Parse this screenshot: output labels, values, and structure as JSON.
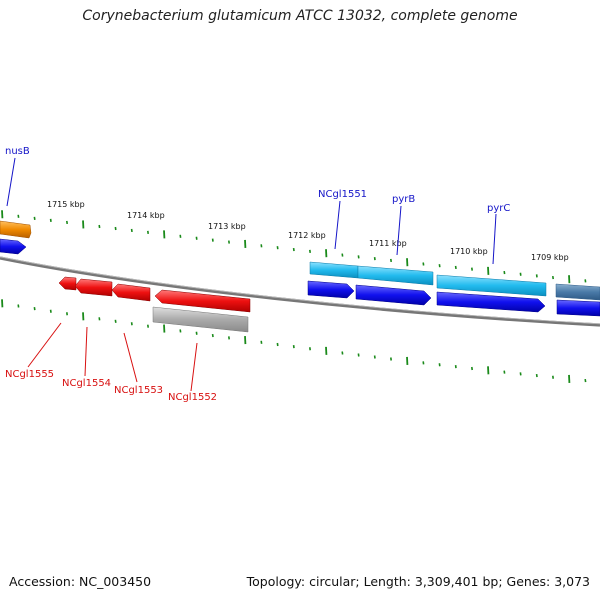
{
  "title": "Corynebacterium glutamicum ATCC 13032, complete genome",
  "footer": {
    "accession": "Accession: NC_003450",
    "summary": "Topology: circular; Length: 3,309,401 bp; Genes: 3,073"
  },
  "scale_labels": [
    "1715 kbp",
    "1714 kbp",
    "1713 kbp",
    "1712 kbp",
    "1711 kbp",
    "1710 kbp",
    "1709 kbp"
  ],
  "gene_labels_top": [
    "nusB",
    "NCgl1551",
    "pyrB",
    "pyrC"
  ],
  "gene_labels_bottom": [
    "NCgl1555",
    "NCgl1554",
    "NCgl1553",
    "NCgl1552"
  ],
  "colors": {
    "backbone": "#777777",
    "tick": "#1a8a1a",
    "forward_strand": "#1111ee",
    "forward_light": "#22bbee",
    "reverse_strand": "#ee1111",
    "pseudo_gray": "#aaaaaa",
    "orange": "#f08a00",
    "label_blue": "#1515c8",
    "label_red": "#d81010"
  }
}
